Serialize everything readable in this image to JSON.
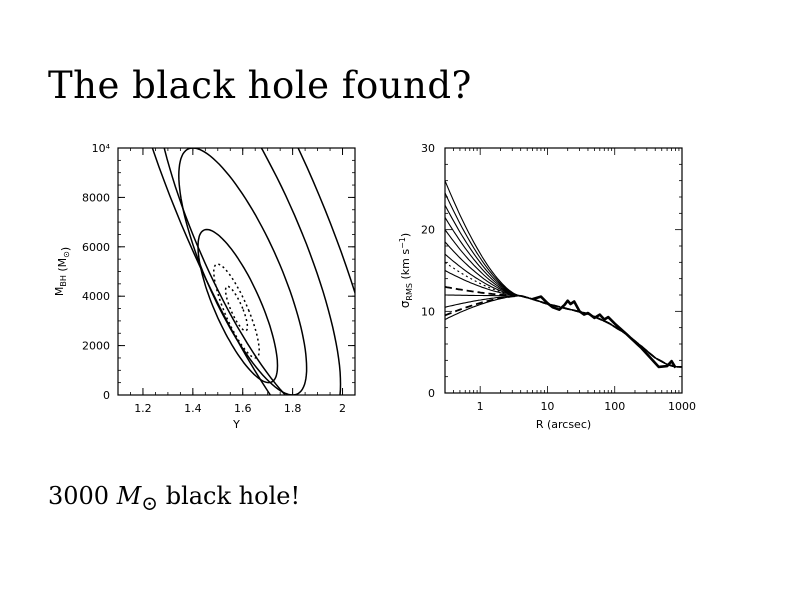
{
  "slide": {
    "title": "The black hole found?",
    "caption_number": "3000",
    "caption_mass": "M",
    "caption_sun": "⊙",
    "caption_rest": "black hole!"
  },
  "chart_data": [
    {
      "type": "contour",
      "xlabel": "Υ",
      "ylabel": "M_BH (M_⊙)",
      "ylabel_main": "M",
      "ylabel_sub": "BH",
      "ylabel_unit": "(M",
      "ylabel_sun": "⊙",
      "ylabel_close": ")",
      "xlim": [
        1.1,
        2.05
      ],
      "ylim": [
        0,
        10000
      ],
      "xticks": [
        1.2,
        1.4,
        1.6,
        1.8,
        2.0
      ],
      "xtick_labels": [
        "1.2",
        "1.4",
        "1.6",
        "1.8",
        "2"
      ],
      "yticks": [
        0,
        2000,
        4000,
        6000,
        8000,
        10000
      ],
      "ytick_labels": [
        "0",
        "2000",
        "4000",
        "6000",
        "8000",
        "10⁴"
      ],
      "best_fit": {
        "upsilon": 1.58,
        "mbh": 3300
      },
      "contours": [
        {
          "style": "dotted",
          "upsilon_halfwidth": 0.025,
          "mbh_halfwidth": 900,
          "center_upsilon": 1.575,
          "center_mbh": 3500
        },
        {
          "style": "dotted",
          "upsilon_halfwidth": 0.05,
          "mbh_halfwidth": 1900,
          "center_upsilon": 1.575,
          "center_mbh": 3400
        },
        {
          "style": "solid",
          "upsilon_halfwidth": 0.1,
          "mbh_halfwidth": 3100,
          "center_upsilon": 1.58,
          "center_mbh": 3600
        },
        {
          "style": "solid",
          "upsilon_halfwidth": 0.16,
          "mbh_halfwidth": 5000,
          "center_upsilon": 1.6,
          "center_mbh": 5000
        },
        {
          "style": "solid",
          "upsilon_halfwidth": 0.22,
          "mbh_halfwidth": 7500,
          "center_upsilon": 1.62,
          "center_mbh": 6500
        },
        {
          "style": "solid",
          "upsilon_halfwidth": 0.3,
          "mbh_halfwidth": 11000,
          "center_upsilon": 1.63,
          "center_mbh": 7500
        }
      ]
    },
    {
      "type": "line",
      "xlabel": "R (arcsec)",
      "ylabel": "σ_RMS (km s⁻¹)",
      "ylabel_main": "σ",
      "ylabel_sub": "RMS",
      "ylabel_unit": "(km s",
      "ylabel_exp": "−1",
      "ylabel_close": ")",
      "xscale": "log",
      "xlim": [
        0.3,
        1000
      ],
      "ylim": [
        0,
        30
      ],
      "xticks": [
        1,
        10,
        100,
        1000
      ],
      "xtick_labels": [
        "1",
        "10",
        "100",
        "1000"
      ],
      "yticks": [
        0,
        10,
        20,
        30
      ],
      "ytick_labels": [
        "0",
        "10",
        "20",
        "30"
      ],
      "model_series": [
        {
          "style": "solid",
          "inner": 26.0
        },
        {
          "style": "solid",
          "inner": 24.5
        },
        {
          "style": "solid",
          "inner": 23.0
        },
        {
          "style": "solid",
          "inner": 21.5
        },
        {
          "style": "solid",
          "inner": 20.0
        },
        {
          "style": "solid",
          "inner": 18.5
        },
        {
          "style": "solid",
          "inner": 17.0
        },
        {
          "style": "dotted",
          "inner": 16.0
        },
        {
          "style": "solid",
          "inner": 15.0
        },
        {
          "style": "dashed",
          "inner": 13.0
        },
        {
          "style": "solid",
          "inner": 12.0
        },
        {
          "style": "solid",
          "inner": 10.5
        },
        {
          "style": "dashed",
          "inner": 9.5
        },
        {
          "style": "solid",
          "inner": 9.0
        }
      ],
      "common_profile": {
        "x": [
          4,
          6,
          10,
          20,
          40,
          80,
          150,
          250,
          400,
          600,
          800
        ],
        "y": [
          11.9,
          11.5,
          10.9,
          10.3,
          9.7,
          8.6,
          7.2,
          5.7,
          4.3,
          3.5,
          3.2
        ]
      },
      "data_series": {
        "x": [
          6,
          8,
          10,
          12,
          15,
          18,
          20,
          22,
          25,
          30,
          35,
          40,
          50,
          60,
          70,
          80,
          100,
          150,
          250,
          450,
          600,
          700,
          800
        ],
        "y": [
          11.5,
          11.8,
          11.0,
          10.5,
          10.2,
          10.8,
          11.3,
          10.9,
          11.2,
          10.0,
          9.6,
          9.8,
          9.2,
          9.6,
          9.0,
          9.3,
          8.5,
          7.2,
          5.5,
          3.2,
          3.3,
          3.9,
          3.1
        ]
      }
    }
  ]
}
